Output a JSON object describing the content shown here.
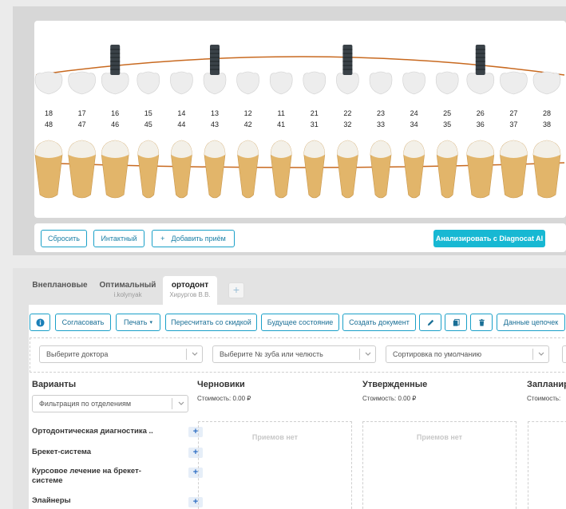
{
  "chart": {
    "upper_numbers": [
      "18",
      "17",
      "16",
      "15",
      "14",
      "13",
      "12",
      "11",
      "21",
      "22",
      "23",
      "24",
      "25",
      "26",
      "27",
      "28"
    ],
    "lower_numbers": [
      "48",
      "47",
      "46",
      "45",
      "44",
      "43",
      "42",
      "41",
      "31",
      "32",
      "33",
      "34",
      "35",
      "36",
      "37",
      "38"
    ],
    "implants_at": [
      "16",
      "13",
      "22",
      "26"
    ],
    "colors": {
      "gumline": "#c8691f",
      "implant": "#3a4248",
      "crown": "#ededed",
      "root": "#e2b56a"
    }
  },
  "chart_toolbar": {
    "reset": "Сбросить",
    "intact": "Интактный",
    "add_visit": "Добавить приём",
    "add_visit_icon": "+",
    "analyze": "Анализировать с Diagnocat AI"
  },
  "tabs": [
    {
      "title": "Внеплановые",
      "subtitle": ""
    },
    {
      "title": "Оптимальный",
      "subtitle": "i.kolynyak"
    },
    {
      "title": "ортодонт",
      "subtitle": "Хирургов В.В."
    }
  ],
  "tab_add": "+",
  "actions": {
    "info": "i",
    "agree": "Согласовать",
    "print": "Печать",
    "recalc": "Пересчитать со скидкой",
    "future": "Будущее состояние",
    "create_doc": "Создать документ",
    "chains": "Данные цепочек"
  },
  "filters": {
    "doctor": "Выберите доктора",
    "tooth": "Выберите № зуба или челюсть",
    "sort": "Сортировка по умолчанию"
  },
  "variants": {
    "title": "Варианты",
    "dept_filter": "Фильтрация по отделениям",
    "items": [
      "Ортодонтическая диагностика ..",
      "Брекет-система",
      "Курсовое лечение на брекет-системе",
      "Элайнеры"
    ]
  },
  "columns": [
    {
      "title": "Черновики",
      "cost": "Стоимость: 0.00 ₽",
      "empty": "Приемов нет"
    },
    {
      "title": "Утвержденные",
      "cost": "Стоимость: 0.00 ₽",
      "empty": "Приемов нет"
    },
    {
      "title": "Запланир",
      "cost": "Стоимость:",
      "empty": ""
    }
  ]
}
